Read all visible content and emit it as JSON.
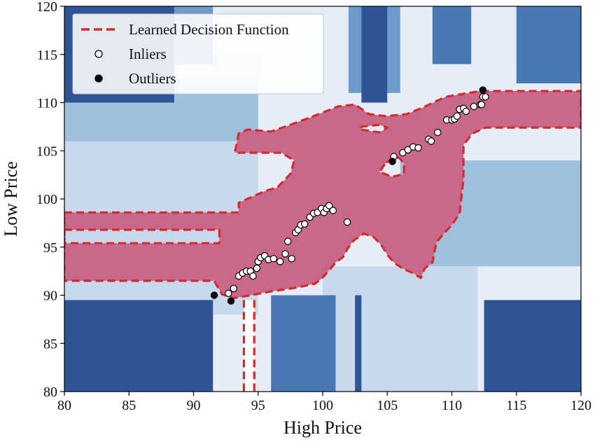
{
  "chart_data": {
    "type": "scatter",
    "title": "",
    "xlabel": "High Price",
    "ylabel": "Low Price",
    "xlim": [
      80,
      120
    ],
    "ylim": [
      80,
      120
    ],
    "xticks": [
      80,
      85,
      90,
      95,
      100,
      105,
      110,
      115,
      120
    ],
    "yticks": [
      80,
      85,
      90,
      95,
      100,
      105,
      110,
      115,
      120
    ],
    "xtick_labels": [
      "80",
      "85",
      "90",
      "95",
      "100",
      "105",
      "110",
      "115",
      "120"
    ],
    "ytick_labels": [
      "80",
      "85",
      "90",
      "95",
      "100",
      "105",
      "110",
      "115",
      "120"
    ],
    "grid": false,
    "legend": {
      "position": "top-left",
      "entries": [
        "Learned Decision Function",
        "Inliers",
        "Outliers"
      ]
    },
    "colors": {
      "inlier_region": "#c8698c",
      "boundary": "#d42a2a",
      "contour_levels": [
        "#e6edf6",
        "#c8d9ed",
        "#9fc1de",
        "#6d9bcc",
        "#4a78b5",
        "#2f5597"
      ]
    },
    "decision_function_bands": [
      {
        "level": 0,
        "x": [
          80,
          120
        ],
        "y": [
          80,
          120
        ]
      },
      {
        "level": 1,
        "x": [
          80,
          95
        ],
        "y": [
          88,
          115
        ]
      },
      {
        "level": 2,
        "x": [
          80,
          95
        ],
        "y": [
          106,
          112
        ]
      },
      {
        "level": 2,
        "x": [
          106,
          120
        ],
        "y": [
          93,
          104
        ]
      },
      {
        "level": 1,
        "x": [
          100,
          112
        ],
        "y": [
          80,
          93
        ]
      },
      {
        "level": 3,
        "x": [
          80,
          91.5
        ],
        "y": [
          114,
          120
        ]
      },
      {
        "level": 3,
        "x": [
          80,
          91.5
        ],
        "y": [
          80,
          89.5
        ]
      },
      {
        "level": 3,
        "x": [
          112.5,
          120
        ],
        "y": [
          80,
          89.5
        ]
      },
      {
        "level": 5,
        "x": [
          80,
          91.5
        ],
        "y": [
          80,
          89.5
        ]
      },
      {
        "level": 5,
        "x": [
          112.5,
          120
        ],
        "y": [
          80,
          89.5
        ]
      },
      {
        "level": 5,
        "x": [
          80,
          88.5
        ],
        "y": [
          110,
          120
        ]
      },
      {
        "level": 3,
        "x": [
          102,
          106
        ],
        "y": [
          111,
          120
        ]
      },
      {
        "level": 5,
        "x": [
          103,
          105
        ],
        "y": [
          110,
          120
        ]
      },
      {
        "level": 4,
        "x": [
          108.5,
          111.5
        ],
        "y": [
          114,
          120
        ]
      },
      {
        "level": 4,
        "x": [
          96,
          101
        ],
        "y": [
          80,
          90
        ]
      },
      {
        "level": 5,
        "x": [
          102.5,
          103
        ],
        "y": [
          80,
          90
        ]
      },
      {
        "level": 4,
        "x": [
          115,
          120
        ],
        "y": [
          112,
          120
        ]
      }
    ],
    "inlier_region_boundary": [
      [
        80,
        98.6
      ],
      [
        93.5,
        98.6
      ],
      [
        93.5,
        99.6
      ],
      [
        95.5,
        100.8
      ],
      [
        96.5,
        101.2
      ],
      [
        97.5,
        102.6
      ],
      [
        97.8,
        104.0
      ],
      [
        96.8,
        104.8
      ],
      [
        93.2,
        104.8
      ],
      [
        93.5,
        106.8
      ],
      [
        94.2,
        107.2
      ],
      [
        96.0,
        107.0
      ],
      [
        97.3,
        107.6
      ],
      [
        99.3,
        108.6
      ],
      [
        101.2,
        109.6
      ],
      [
        102.5,
        109.8
      ],
      [
        103.6,
        108.8
      ],
      [
        104.9,
        108.6
      ],
      [
        106.5,
        108.8
      ],
      [
        107.6,
        109.4
      ],
      [
        109.5,
        110.6
      ],
      [
        112.2,
        111.2
      ],
      [
        120,
        111.2
      ],
      [
        120,
        107.4
      ],
      [
        112.6,
        107.4
      ],
      [
        111.6,
        106.8
      ],
      [
        110.9,
        105.6
      ],
      [
        110.9,
        102.1
      ],
      [
        110.6,
        98.5
      ],
      [
        110.0,
        97.3
      ],
      [
        109.3,
        96.3
      ],
      [
        108.8,
        95.5
      ],
      [
        108.5,
        93.4
      ],
      [
        107.9,
        92.8
      ],
      [
        107.6,
        91.8
      ],
      [
        107.0,
        92.3
      ],
      [
        106.3,
        92.7
      ],
      [
        105.6,
        93.3
      ],
      [
        105.0,
        94.2
      ],
      [
        104.6,
        95.1
      ],
      [
        104.0,
        96.0
      ],
      [
        103.2,
        96.4
      ],
      [
        102.4,
        95.7
      ],
      [
        101.9,
        94.8
      ],
      [
        101.6,
        94.0
      ],
      [
        101.0,
        93.4
      ],
      [
        100.5,
        92.6
      ],
      [
        99.9,
        91.7
      ],
      [
        99.4,
        91.2
      ],
      [
        98.0,
        90.8
      ],
      [
        96.0,
        90.4
      ],
      [
        94.4,
        90.0
      ],
      [
        93.1,
        89.7
      ],
      [
        92.2,
        90.1
      ],
      [
        91.6,
        91.5
      ],
      [
        80,
        91.5
      ]
    ],
    "inlier_region_cutouts": [
      [
        [
          80,
          96.8
        ],
        [
          92.0,
          96.8
        ],
        [
          92.0,
          95.4
        ],
        [
          80,
          95.4
        ]
      ],
      [
        [
          104.9,
          103.8
        ],
        [
          105.9,
          104.3
        ],
        [
          106.3,
          103.7
        ],
        [
          106.3,
          102.6
        ],
        [
          105.4,
          102.3
        ],
        [
          104.4,
          102.8
        ]
      ],
      [
        [
          103.0,
          107.2
        ],
        [
          104.4,
          106.9
        ],
        [
          105.0,
          107.4
        ],
        [
          104.4,
          107.7
        ],
        [
          103.0,
          107.5
        ]
      ]
    ],
    "vertical_tail": {
      "x": [
        93.9,
        94.7
      ],
      "y": [
        80,
        89.5
      ]
    },
    "series": [
      {
        "name": "Inliers",
        "points": [
          [
            92.7,
            90.2
          ],
          [
            93.1,
            90.7
          ],
          [
            93.5,
            92.0
          ],
          [
            93.8,
            92.3
          ],
          [
            94.1,
            92.5
          ],
          [
            94.4,
            92.5
          ],
          [
            94.6,
            92.0
          ],
          [
            94.9,
            92.8
          ],
          [
            95.0,
            93.5
          ],
          [
            95.2,
            93.9
          ],
          [
            95.5,
            94.1
          ],
          [
            95.8,
            93.7
          ],
          [
            96.2,
            93.8
          ],
          [
            96.7,
            93.5
          ],
          [
            97.1,
            94.3
          ],
          [
            97.3,
            95.6
          ],
          [
            97.6,
            93.8
          ],
          [
            97.9,
            96.5
          ],
          [
            98.1,
            96.8
          ],
          [
            98.3,
            97.3
          ],
          [
            98.6,
            97.4
          ],
          [
            99.0,
            98.1
          ],
          [
            99.3,
            98.5
          ],
          [
            99.6,
            98.6
          ],
          [
            99.9,
            99.0
          ],
          [
            100.1,
            98.6
          ],
          [
            100.3,
            99.0
          ],
          [
            100.5,
            99.3
          ],
          [
            100.8,
            98.8
          ],
          [
            101.9,
            97.6
          ],
          [
            105.5,
            104.4
          ],
          [
            106.2,
            104.8
          ],
          [
            106.6,
            105.1
          ],
          [
            107.0,
            105.4
          ],
          [
            107.4,
            105.3
          ],
          [
            108.2,
            106.2
          ],
          [
            108.4,
            106.0
          ],
          [
            108.9,
            106.9
          ],
          [
            109.6,
            108.2
          ],
          [
            110.0,
            108.2
          ],
          [
            110.2,
            108.3
          ],
          [
            110.4,
            108.6
          ],
          [
            110.6,
            109.3
          ],
          [
            110.9,
            109.4
          ],
          [
            111.1,
            109.1
          ],
          [
            111.7,
            109.6
          ],
          [
            112.2,
            109.8
          ],
          [
            112.4,
            110.6
          ],
          [
            112.6,
            110.6
          ],
          [
            112.3,
            109.8
          ]
        ]
      },
      {
        "name": "Outliers",
        "points": [
          [
            91.6,
            90.0
          ],
          [
            92.9,
            89.4
          ],
          [
            105.4,
            103.9
          ],
          [
            112.4,
            111.3
          ]
        ]
      }
    ]
  }
}
